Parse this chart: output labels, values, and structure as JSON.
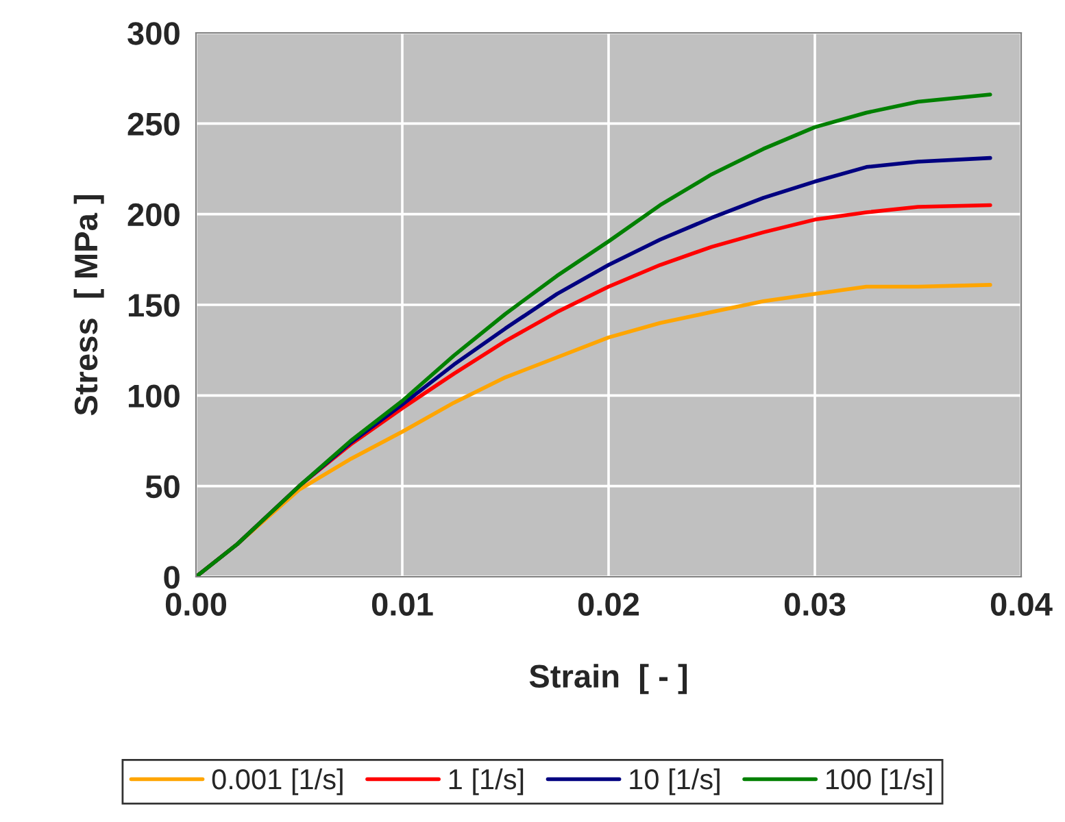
{
  "chart_data": {
    "type": "line",
    "xlabel": "Strain  [ - ]",
    "ylabel": "Stress  [ MPa ]",
    "xlim": [
      0,
      0.04
    ],
    "xticks": [
      {
        "value": 0,
        "label": "0.00"
      },
      {
        "value": 0.01,
        "label": "0.01"
      },
      {
        "value": 0.02,
        "label": "0.02"
      },
      {
        "value": 0.03,
        "label": "0.03"
      },
      {
        "value": 0.04,
        "label": "0.04"
      }
    ],
    "ylim": [
      0,
      300
    ],
    "yticks": [
      0,
      50,
      100,
      150,
      200,
      250,
      300
    ],
    "grid": true,
    "legend": "bottom",
    "marker": "none",
    "line_style": "solid",
    "series": [
      {
        "name": "0.001 [1/s]",
        "color": "#ffa500",
        "x": [
          0,
          0.002,
          0.005,
          0.0075,
          0.01,
          0.0125,
          0.015,
          0.0175,
          0.02,
          0.0225,
          0.025,
          0.0275,
          0.03,
          0.0325,
          0.035,
          0.0385
        ],
        "values": [
          0,
          18,
          48,
          65,
          80,
          96,
          110,
          121,
          132,
          140,
          146,
          152,
          156,
          160,
          160,
          161
        ]
      },
      {
        "name": "1 [1/s]",
        "color": "#ff0000",
        "x": [
          0,
          0.002,
          0.005,
          0.0075,
          0.01,
          0.0125,
          0.015,
          0.0175,
          0.02,
          0.0225,
          0.025,
          0.0275,
          0.03,
          0.0325,
          0.035,
          0.0385
        ],
        "values": [
          0,
          18,
          50,
          73,
          93,
          112,
          130,
          146,
          160,
          172,
          182,
          190,
          197,
          201,
          204,
          205
        ]
      },
      {
        "name": "10 [1/s]",
        "color": "#000080",
        "x": [
          0,
          0.002,
          0.005,
          0.0075,
          0.01,
          0.0125,
          0.015,
          0.0175,
          0.02,
          0.0225,
          0.025,
          0.0275,
          0.03,
          0.0325,
          0.035,
          0.0385
        ],
        "values": [
          0,
          18,
          50,
          74,
          95,
          117,
          137,
          156,
          172,
          186,
          198,
          209,
          218,
          226,
          229,
          231
        ]
      },
      {
        "name": "100 [1/s]",
        "color": "#008000",
        "x": [
          0,
          0.002,
          0.005,
          0.0075,
          0.01,
          0.0125,
          0.015,
          0.0175,
          0.02,
          0.0225,
          0.025,
          0.0275,
          0.03,
          0.0325,
          0.035,
          0.0385
        ],
        "values": [
          0,
          18,
          50,
          75,
          97,
          122,
          145,
          166,
          185,
          205,
          222,
          236,
          248,
          256,
          262,
          266
        ]
      }
    ]
  }
}
